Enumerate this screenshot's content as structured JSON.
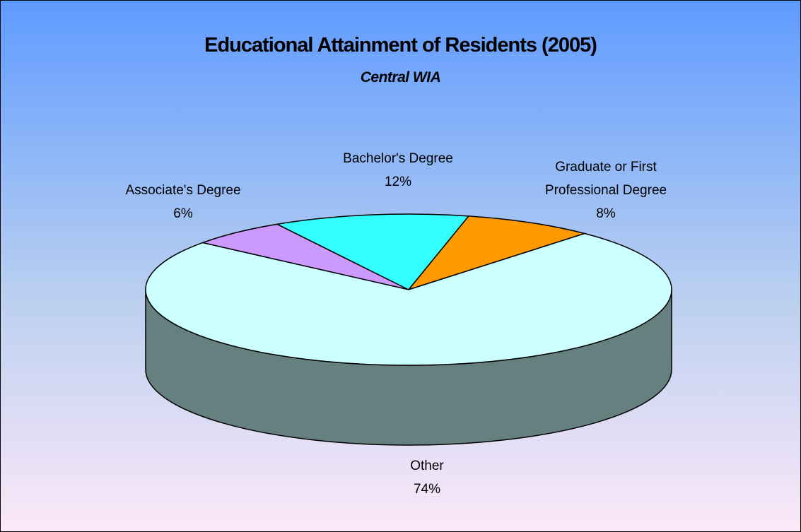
{
  "chart_data": {
    "type": "pie",
    "title": "Educational Attainment of Residents (2005)",
    "subtitle": "Central WIA",
    "categories": [
      "Associate's Degree",
      "Bachelor's Degree",
      "Graduate or First Professional Degree",
      "Other"
    ],
    "values": [
      6,
      12,
      8,
      74
    ],
    "value_labels": [
      "6%",
      "12%",
      "8%",
      "74%"
    ],
    "colors": [
      "#cc99ff",
      "#33ffff",
      "#ff9900",
      "#ccffff"
    ]
  }
}
